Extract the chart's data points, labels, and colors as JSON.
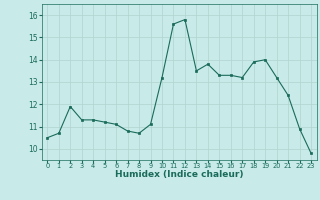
{
  "x_data": [
    0,
    1,
    2,
    3,
    4,
    5,
    6,
    7,
    8,
    9,
    10,
    11,
    12,
    13,
    14,
    15,
    16,
    17,
    18,
    19,
    20,
    21,
    22,
    23
  ],
  "y_data": [
    10.5,
    10.7,
    11.9,
    11.3,
    11.3,
    11.2,
    11.1,
    10.8,
    10.7,
    11.1,
    13.2,
    15.6,
    15.8,
    13.5,
    13.8,
    13.3,
    13.3,
    13.2,
    13.9,
    14.0,
    13.2,
    12.4,
    10.9,
    9.8
  ],
  "xlabel": "Humidex (Indice chaleur)",
  "line_color": "#1a6b5a",
  "bg_color": "#c8eae8",
  "grid_color": "#b0d4d0",
  "ylim": [
    9.5,
    16.5
  ],
  "xlim": [
    -0.5,
    23.5
  ],
  "yticks": [
    10,
    11,
    12,
    13,
    14,
    15,
    16
  ],
  "xtick_labels": [
    "0",
    "1",
    "2",
    "3",
    "4",
    "5",
    "6",
    "7",
    "8",
    "9",
    "10",
    "11",
    "12",
    "13",
    "14",
    "15",
    "16",
    "17",
    "18",
    "19",
    "20",
    "21",
    "22",
    "23"
  ]
}
